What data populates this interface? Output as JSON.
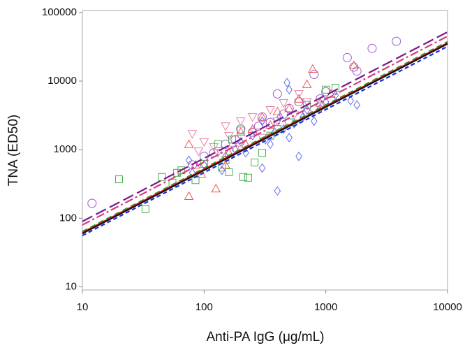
{
  "chart_data": {
    "type": "scatter",
    "x_label": "Anti-PA IgG (μg/mL)",
    "y_label": "TNA (ED50)",
    "xscale": "log",
    "yscale": "log",
    "xlim": [
      10,
      10000
    ],
    "ylim": [
      9,
      107000
    ],
    "xticks": [
      10,
      100,
      1000,
      10000
    ],
    "yticks": [
      10,
      100,
      1000,
      10000,
      100000
    ],
    "series": [
      {
        "kind": "scatter",
        "marker": "circle",
        "color": "#9a5ad2",
        "x": [
          12,
          3800,
          2400,
          1500,
          1700,
          1800,
          800,
          400,
          600,
          300,
          200,
          150,
          100,
          80,
          250,
          500,
          700,
          1000,
          350,
          450,
          120,
          180,
          280,
          900
        ],
        "values": [
          165,
          38000,
          30000,
          22000,
          16000,
          14000,
          12500,
          6500,
          5000,
          3000,
          2000,
          1200,
          800,
          600,
          1800,
          4000,
          3500,
          7000,
          2500,
          3300,
          900,
          1400,
          2200,
          5500
        ]
      },
      {
        "kind": "scatter",
        "marker": "triangle-up",
        "color": "#f05a50",
        "x": [
          75,
          75,
          125,
          95,
          150,
          200,
          300,
          500,
          780,
          700,
          1700,
          600,
          400,
          250,
          160,
          1100,
          220,
          350,
          85,
          900
        ],
        "values": [
          1200,
          210,
          270,
          440,
          600,
          1800,
          3000,
          4000,
          15000,
          9000,
          17000,
          5500,
          3600,
          2000,
          900,
          6500,
          1200,
          2300,
          600,
          4800
        ]
      },
      {
        "kind": "scatter",
        "marker": "triangle-down",
        "color": "#e883a8",
        "x": [
          80,
          100,
          150,
          200,
          250,
          130,
          300,
          350,
          450,
          600,
          700,
          180,
          90,
          260,
          550,
          400,
          160,
          120
        ],
        "values": [
          1700,
          1300,
          2200,
          2600,
          3000,
          900,
          1500,
          3800,
          4800,
          6500,
          5000,
          1000,
          950,
          1800,
          3200,
          2600,
          1600,
          1100
        ]
      },
      {
        "kind": "scatter",
        "marker": "square",
        "color": "#4caf50",
        "x": [
          20,
          33,
          45,
          55,
          60,
          65,
          85,
          100,
          140,
          150,
          170,
          200,
          210,
          230,
          300,
          350,
          500,
          1000,
          1200,
          700,
          130,
          400,
          160,
          260
        ],
        "values": [
          370,
          135,
          400,
          330,
          460,
          500,
          360,
          620,
          550,
          700,
          1400,
          1900,
          400,
          390,
          900,
          1600,
          2500,
          7500,
          8000,
          4500,
          1200,
          2000,
          470,
          650
        ]
      },
      {
        "kind": "scatter",
        "marker": "diamond",
        "color": "#6470f0",
        "x": [
          75,
          80,
          100,
          150,
          180,
          200,
          250,
          300,
          350,
          400,
          450,
          500,
          550,
          600,
          650,
          700,
          800,
          900,
          1000,
          1200,
          1600,
          1800,
          480,
          500,
          420,
          380,
          300,
          320,
          140,
          220
        ],
        "values": [
          700,
          460,
          600,
          800,
          1000,
          1300,
          1600,
          540,
          1200,
          250,
          2000,
          1500,
          2400,
          800,
          3000,
          3800,
          2600,
          4000,
          5000,
          6200,
          5200,
          4500,
          9500,
          7500,
          3000,
          1800,
          2600,
          1400,
          500,
          900
        ]
      },
      {
        "kind": "line",
        "dash": "16 6",
        "color": "#7a1a8a",
        "x": [
          10,
          10000
        ],
        "values": [
          90,
          52000
        ]
      },
      {
        "kind": "line",
        "dash": "12 4 3 4",
        "color": "#d0407a",
        "x": [
          10,
          10000
        ],
        "values": [
          80,
          45000
        ]
      },
      {
        "kind": "line",
        "dash": "8 5",
        "color": "#2e9a3a",
        "x": [
          10,
          10000
        ],
        "values": [
          64,
          37500
        ]
      },
      {
        "kind": "line",
        "dash": "none",
        "color": "#e0201a",
        "x": [
          10,
          10000
        ],
        "values": [
          62,
          36000
        ]
      },
      {
        "kind": "line",
        "dash": "none",
        "color": "#111111",
        "x": [
          10,
          10000
        ],
        "values": [
          60,
          35000
        ]
      },
      {
        "kind": "line",
        "dash": "6 4",
        "color": "#1a2ae0",
        "x": [
          10,
          10000
        ],
        "values": [
          56,
          32000
        ]
      }
    ]
  }
}
